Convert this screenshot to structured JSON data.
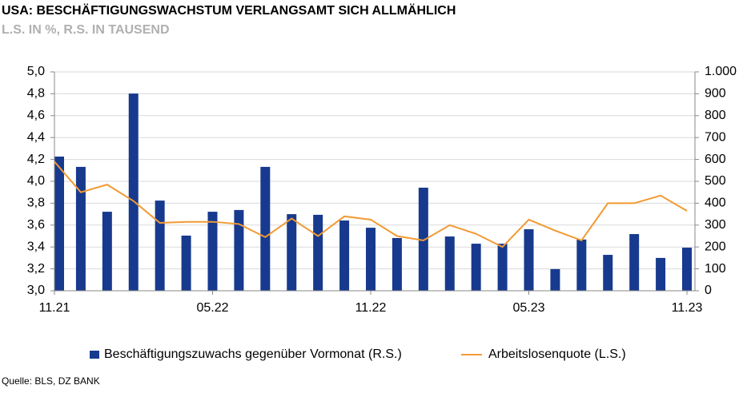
{
  "chart_data": {
    "type": "bar-line",
    "title": "USA: BESCHÄFTIGUNGSWACHSTUM VERLANGSAMT SICH ALLMÄHLICH",
    "subtitle": "L.S. IN %, R.S. IN TAUSEND",
    "source": "Quelle: BLS, DZ BANK",
    "categories": [
      "11.21",
      null,
      null,
      null,
      null,
      null,
      "05.22",
      null,
      null,
      null,
      null,
      null,
      "11.22",
      null,
      null,
      null,
      null,
      null,
      "05.23",
      null,
      null,
      null,
      null,
      null,
      "11.23"
    ],
    "series": [
      {
        "name": "Beschäftigungszuwachs gegenüber Vormonat (R.S.)",
        "type": "bar",
        "axis": "y2",
        "color": "#173a8e",
        "values": [
          613,
          566,
          361,
          901,
          412,
          252,
          361,
          369,
          566,
          350,
          347,
          321,
          288,
          241,
          471,
          248,
          215,
          215,
          281,
          99,
          234,
          164,
          259,
          150,
          197
        ]
      },
      {
        "name": "Arbeitslosenquote (L.S.)",
        "type": "line",
        "axis": "y",
        "color": "#f29a33",
        "values": [
          4.18,
          3.9,
          3.97,
          3.82,
          3.62,
          3.63,
          3.63,
          3.61,
          3.49,
          3.66,
          3.5,
          3.68,
          3.65,
          3.5,
          3.46,
          3.6,
          3.52,
          3.4,
          3.65,
          3.55,
          3.46,
          3.8,
          3.8,
          3.87,
          3.73
        ]
      }
    ],
    "ylim": [
      3.0,
      5.0
    ],
    "yticks": [
      {
        "value": 3.0,
        "label": "3,0"
      },
      {
        "value": 3.2,
        "label": "3,2"
      },
      {
        "value": 3.4,
        "label": "3,4"
      },
      {
        "value": 3.6,
        "label": "3,6"
      },
      {
        "value": 3.8,
        "label": "3,8"
      },
      {
        "value": 4.0,
        "label": "4,0"
      },
      {
        "value": 4.2,
        "label": "4,2"
      },
      {
        "value": 4.4,
        "label": "4,4"
      },
      {
        "value": 4.6,
        "label": "4,6"
      },
      {
        "value": 4.8,
        "label": "4,8"
      },
      {
        "value": 5.0,
        "label": "5,0"
      }
    ],
    "y2lim": [
      0,
      1000
    ],
    "y2ticks": [
      0,
      100,
      200,
      300,
      400,
      500,
      600,
      700,
      800,
      900,
      {
        "value": 1000,
        "label": "1.000"
      }
    ],
    "grid": true
  }
}
